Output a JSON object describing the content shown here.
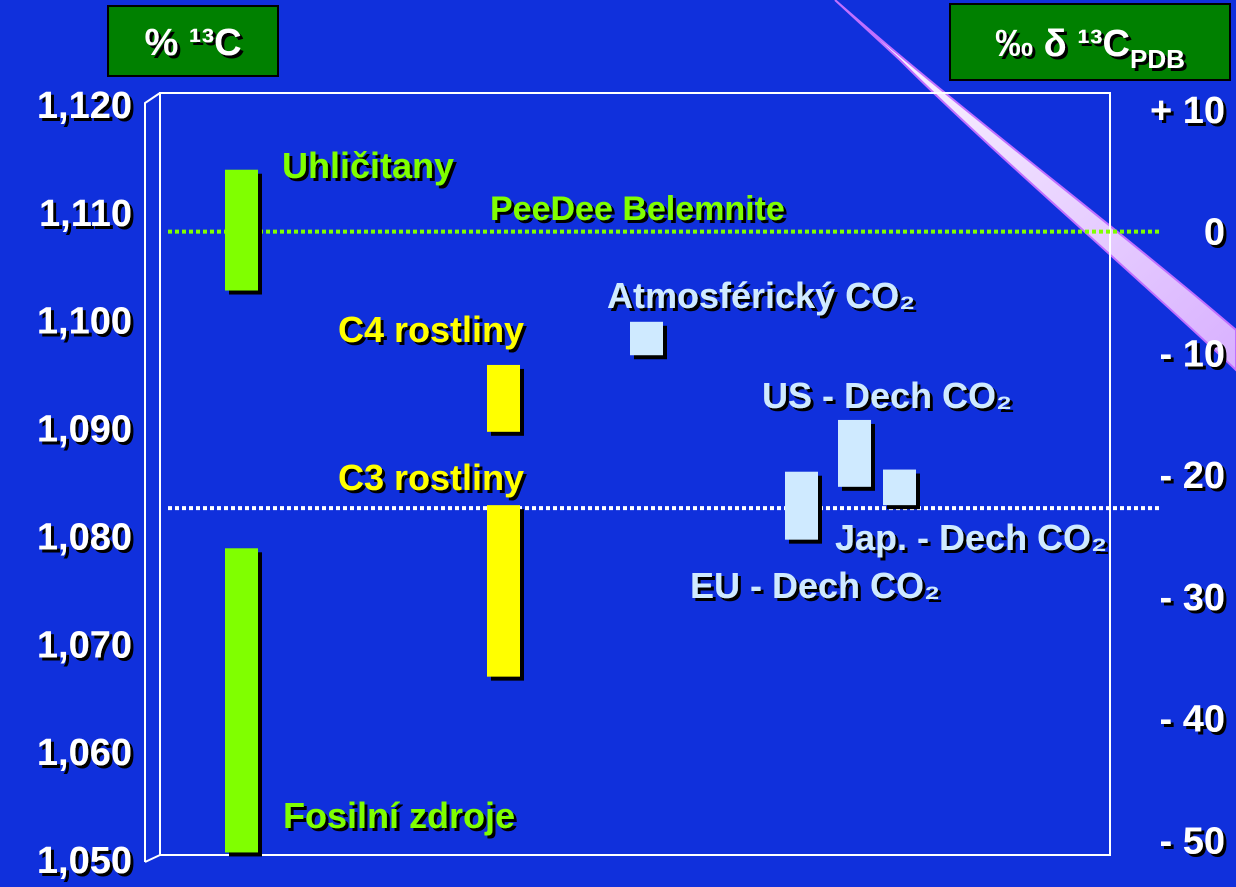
{
  "chart_data": {
    "type": "floating-bar",
    "ylabel": "% ¹³C",
    "y2label": "‰ δ ¹³C",
    "y2label_sub": "PDB",
    "ylim": [
      1.05,
      1.12
    ],
    "yticks": [
      {
        "value": 1.12,
        "label": "1,120"
      },
      {
        "value": 1.11,
        "label": "1,110"
      },
      {
        "value": 1.1,
        "label": "1,100"
      },
      {
        "value": 1.09,
        "label": "1,090"
      },
      {
        "value": 1.08,
        "label": "1,080"
      },
      {
        "value": 1.07,
        "label": "1,070"
      },
      {
        "value": 1.06,
        "label": "1,060"
      },
      {
        "value": 1.05,
        "label": "1,050"
      }
    ],
    "y2lim": [
      -51.6,
      10.4
    ],
    "y2ticks": [
      {
        "value": 10,
        "label": "+ 10"
      },
      0,
      {
        "value": -10,
        "label": "- 10"
      },
      {
        "value": -20,
        "label": "- 20"
      },
      {
        "value": -30,
        "label": "- 30"
      },
      {
        "value": -40,
        "label": "- 40"
      },
      {
        "value": -50,
        "label": "- 50"
      }
    ],
    "grid": false,
    "bars": [
      {
        "label": "Uhličitany",
        "color": "#80ff00",
        "low": 1.1028,
        "high": 1.114
      },
      {
        "label": "Atmosférický CO₂",
        "color": "#cfeaff",
        "low": 1.0968,
        "high": 1.0999
      },
      {
        "label": "C4 rostliny",
        "color": "#ffff00",
        "low": 1.0897,
        "high": 1.0959
      },
      {
        "label": "US - Dech CO₂",
        "color": "#cfeaff",
        "low": 1.0846,
        "high": 1.0908
      },
      {
        "label": "C3 rostliny",
        "color": "#ffff00",
        "low": 1.067,
        "high": 1.0829
      },
      {
        "label": "Jap. - Dech CO₂",
        "color": "#cfeaff",
        "low": 1.0829,
        "high": 1.0862
      },
      {
        "label": "EU - Dech CO₂",
        "color": "#cfeaff",
        "low": 1.0797,
        "high": 1.086
      },
      {
        "label": "Fosilní zdroje",
        "color": "#80ff00",
        "low": 1.0507,
        "high": 1.0789
      }
    ],
    "reference_lines": [
      {
        "label": "PeeDee Belemnite",
        "axis": "y2",
        "value": 0,
        "color": "#80ff00"
      },
      {
        "axis": "y2",
        "value": -22.7,
        "color": "#ffffff"
      }
    ]
  }
}
